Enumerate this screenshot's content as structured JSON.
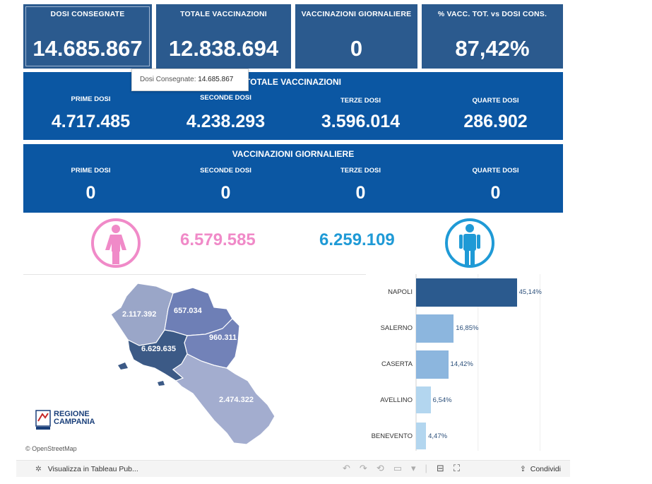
{
  "kpis": [
    {
      "label": "DOSI CONSEGNATE",
      "value": "14.685.867"
    },
    {
      "label": "TOTALE VACCINAZIONI",
      "value": "12.838.694"
    },
    {
      "label": "VACCINAZIONI GIORNALIERE",
      "value": "0"
    },
    {
      "label": "% VACC. TOT. vs DOSI CONS.",
      "value": "87,42%"
    }
  ],
  "tooltip": {
    "label": "Dosi Consegnate:",
    "value": "14.685.867"
  },
  "totale": {
    "title": "TOTALE VACCINAZIONI",
    "cols": [
      {
        "label": "PRIME DOSI",
        "value": "4.717.485"
      },
      {
        "label": "SECONDE DOSI",
        "value": "4.238.293"
      },
      {
        "label": "TERZE DOSI",
        "value": "3.596.014"
      },
      {
        "label": "QUARTE DOSI",
        "value": "286.902"
      }
    ]
  },
  "giornaliere": {
    "title": "VACCINAZIONI GIORNALIERE",
    "cols": [
      {
        "label": "PRIME DOSI",
        "value": "0"
      },
      {
        "label": "SECONDE DOSI",
        "value": "0"
      },
      {
        "label": "TERZE DOSI",
        "value": "0"
      },
      {
        "label": "QUARTE DOSI",
        "value": "0"
      }
    ]
  },
  "gender": {
    "female_value": "6.579.585",
    "male_value": "6.259.109",
    "female_color": "#f08ac8",
    "male_color": "#1f9ad6",
    "female_icon": "female-person-icon",
    "male_icon": "male-person-icon"
  },
  "map": {
    "provinces": [
      {
        "name": "caserta",
        "value": "2.117.392",
        "color": "#9aa6c8"
      },
      {
        "name": "benevento",
        "value": "657.034",
        "color": "#6e7fb6"
      },
      {
        "name": "avellino",
        "value": "960.311",
        "color": "#7282b8"
      },
      {
        "name": "napoli",
        "value": "6.629.635",
        "color": "#3c5a86"
      },
      {
        "name": "salerno",
        "value": "2.474.322",
        "color": "#a3adcf"
      }
    ],
    "logo_line1": "REGIONE",
    "logo_line2": "CAMPANIA",
    "attribution": "© OpenStreetMap"
  },
  "chart_data": {
    "type": "bar",
    "orientation": "horizontal",
    "categories": [
      "NAPOLI",
      "SALERNO",
      "CASERTA",
      "AVELLINO",
      "BENEVENTO"
    ],
    "values": [
      45.14,
      16.85,
      14.42,
      6.54,
      4.47
    ],
    "labels": [
      "45,14%",
      "16,85%",
      "14,42%",
      "6,54%",
      "4,47%"
    ],
    "colors": [
      "#2b5a8e",
      "#8cb6de",
      "#8cb6de",
      "#b3d6ef",
      "#b3d6ef"
    ],
    "xlim": [
      0,
      50
    ]
  },
  "footer": {
    "tableau_link": "Visualizza in Tableau Pub...",
    "share_label": "Condividi"
  }
}
